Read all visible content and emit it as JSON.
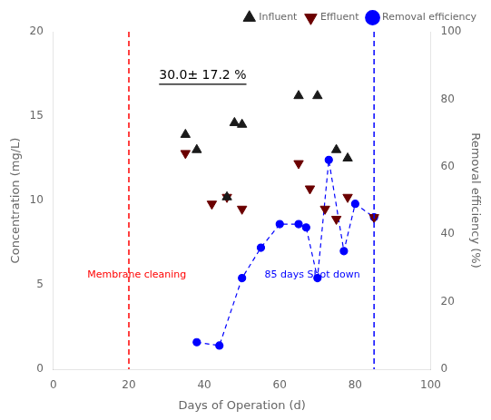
{
  "chart_data": {
    "type": "scatter",
    "x_label": "Days of Operation (d)",
    "y_label": "Concentration (mg/L)",
    "y2_label": "Removal efficiency (%)",
    "xlim": [
      0,
      100
    ],
    "ylim": [
      0,
      20
    ],
    "y2lim": [
      0,
      100
    ],
    "xticks": [
      0,
      20,
      40,
      60,
      80,
      100
    ],
    "yticks": [
      0,
      5,
      10,
      15,
      20
    ],
    "y2ticks": [
      0,
      20,
      40,
      60,
      80,
      100
    ],
    "grid": false,
    "legend": "upper right",
    "series": [
      {
        "name": "Influent",
        "type": "scatter",
        "color": "#1a1a1a",
        "marker": "triangle",
        "x": [
          35,
          38,
          46,
          48,
          50,
          65,
          70,
          75,
          78
        ],
        "values": [
          13.9,
          13.0,
          10.2,
          14.6,
          14.5,
          16.2,
          16.2,
          13.0,
          12.5
        ]
      },
      {
        "name": "Effluent",
        "type": "scatter",
        "color": "#6B0000",
        "marker": "triangle_down",
        "x": [
          35,
          42,
          46,
          50,
          65,
          68,
          72,
          75,
          78,
          85
        ],
        "values": [
          12.8,
          9.8,
          10.2,
          9.5,
          12.2,
          10.7,
          9.5,
          8.9,
          10.2,
          9.0
        ]
      },
      {
        "name": "Removal efficiency",
        "type": "line",
        "axis": "y2",
        "color": "blue",
        "marker": "circle",
        "line_style": "dashed",
        "x": [
          38,
          44,
          50,
          55,
          60,
          65,
          67,
          70,
          73,
          77,
          80,
          85
        ],
        "values": [
          8,
          7,
          27,
          36,
          43,
          43,
          42,
          27,
          62,
          35,
          49,
          45
        ]
      }
    ],
    "vlines": [
      {
        "x": 20,
        "color": "red",
        "label": "Membrane cleaning"
      },
      {
        "x": 85,
        "color": "blue",
        "label": "85 days Shot down"
      }
    ],
    "annotations": [
      {
        "text": "30.0± 17.2 %"
      }
    ]
  }
}
